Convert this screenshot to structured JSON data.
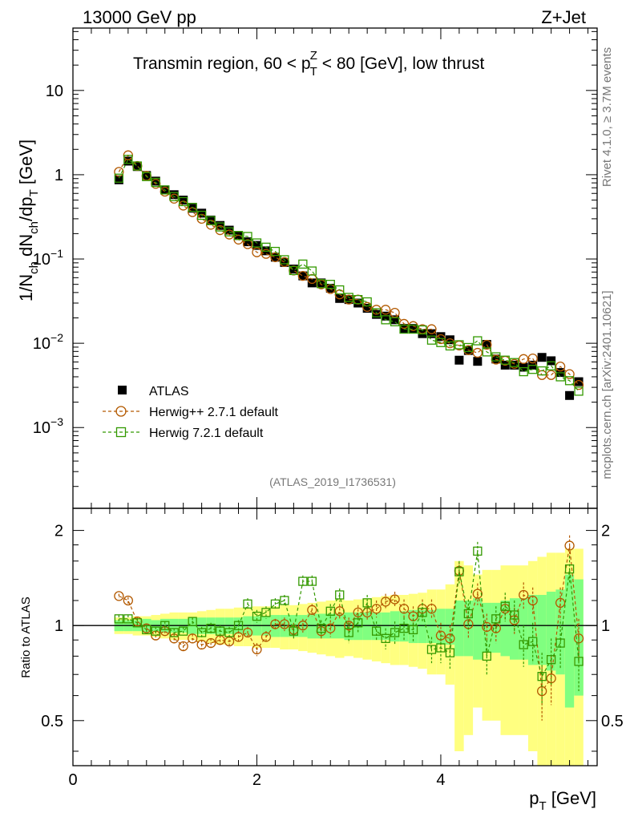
{
  "header": {
    "left": "13000 GeV pp",
    "right": "Z+Jet"
  },
  "side_labels": {
    "rivet": "Rivet 4.1.0, ≥ 3.7M events",
    "mcplots": "mcplots.cern.ch [arXiv:2401.10621]"
  },
  "chart_data": [
    {
      "type": "scatter",
      "title": "Transmin region, 60 < p_T^Z < 80 [GeV], low thrust",
      "title_parts": {
        "a": "Transmin region, 60 < p",
        "sub": "T",
        "sup": "Z",
        "b": " < 80 [GeV], low thrust"
      },
      "analysis_id": "(ATLAS_2019_I1736531)",
      "ylabel": "1/N_ch dN_ch/dp_T [GeV]",
      "ylabel_parts": {
        "a": "1/N",
        "s1": "ch",
        "b": " dN",
        "s2": "ch",
        "c": "/dp",
        "s3": "T",
        "d": " [GeV]"
      },
      "yscale": "log",
      "ylim": [
        0.00011,
        55
      ],
      "xlim": [
        0,
        5.7
      ],
      "ytick_values": [
        0.001,
        0.01,
        0.1,
        1,
        10
      ],
      "ytick_labels": [
        {
          "base": "10",
          "exp": "−3"
        },
        {
          "base": "10",
          "exp": "−2"
        },
        {
          "base": "10",
          "exp": "−1"
        },
        {
          "base": "1",
          "exp": ""
        },
        {
          "base": "10",
          "exp": ""
        }
      ],
      "legend": {
        "position": "lower-left",
        "entries": [
          {
            "label": "ATLAS",
            "marker": "filled-square",
            "color": "#000000"
          },
          {
            "label": "Herwig++ 2.7.1 default",
            "marker": "open-circle",
            "color": "#b35900"
          },
          {
            "label": "Herwig 7.2.1 default",
            "marker": "open-square",
            "color": "#339900"
          }
        ]
      },
      "x": [
        0.5,
        0.6,
        0.7,
        0.8,
        0.9,
        1.0,
        1.1,
        1.2,
        1.3,
        1.4,
        1.5,
        1.6,
        1.7,
        1.8,
        1.9,
        2.0,
        2.1,
        2.2,
        2.3,
        2.4,
        2.5,
        2.6,
        2.7,
        2.8,
        2.9,
        3.0,
        3.1,
        3.2,
        3.3,
        3.4,
        3.5,
        3.6,
        3.7,
        3.8,
        3.9,
        4.0,
        4.1,
        4.2,
        4.3,
        4.4,
        4.5,
        4.6,
        4.7,
        4.8,
        4.9,
        5.0,
        5.1,
        5.2,
        5.3,
        5.4,
        5.5
      ],
      "series": [
        {
          "name": "ATLAS",
          "color": "#000000",
          "values": [
            0.87,
            1.45,
            1.25,
            0.98,
            0.84,
            0.66,
            0.58,
            0.5,
            0.4,
            0.35,
            0.29,
            0.25,
            0.22,
            0.19,
            0.16,
            0.145,
            0.125,
            0.105,
            0.091,
            0.076,
            0.063,
            0.052,
            0.052,
            0.045,
            0.034,
            0.033,
            0.03,
            0.026,
            0.022,
            0.021,
            0.019,
            0.015,
            0.015,
            0.013,
            0.013,
            0.012,
            0.011,
            0.0063,
            0.0082,
            0.0061,
            0.0097,
            0.0065,
            0.0055,
            0.0055,
            0.0052,
            0.0055,
            0.0068,
            0.0062,
            0.0045,
            0.0024,
            0.0035
          ]
        },
        {
          "name": "Herwig++ 2.7.1 default",
          "color": "#b35900",
          "values": [
            1.08,
            1.7,
            1.27,
            0.97,
            0.78,
            0.63,
            0.52,
            0.43,
            0.36,
            0.3,
            0.255,
            0.22,
            0.195,
            0.17,
            0.15,
            0.12,
            0.115,
            0.105,
            0.092,
            0.073,
            0.063,
            0.058,
            0.05,
            0.044,
            0.038,
            0.033,
            0.033,
            0.027,
            0.025,
            0.025,
            0.023,
            0.017,
            0.016,
            0.0147,
            0.0147,
            0.0112,
            0.01,
            0.0094,
            0.0083,
            0.0077,
            0.0096,
            0.0064,
            0.0062,
            0.0057,
            0.0065,
            0.0066,
            0.0042,
            0.0042,
            0.0053,
            0.0043,
            0.0032
          ]
        },
        {
          "name": "Herwig 7.2.1 default",
          "color": "#339900",
          "values": [
            0.91,
            1.52,
            1.27,
            0.95,
            0.81,
            0.66,
            0.55,
            0.48,
            0.41,
            0.33,
            0.285,
            0.24,
            0.21,
            0.19,
            0.185,
            0.155,
            0.138,
            0.123,
            0.098,
            0.073,
            0.087,
            0.072,
            0.051,
            0.05,
            0.043,
            0.035,
            0.033,
            0.031,
            0.023,
            0.019,
            0.018,
            0.0147,
            0.0147,
            0.0144,
            0.0109,
            0.0102,
            0.0093,
            0.0096,
            0.0089,
            0.0107,
            0.0079,
            0.0069,
            0.0063,
            0.0059,
            0.0046,
            0.0049,
            0.0047,
            0.0054,
            0.004,
            0.0036,
            0.0027
          ]
        }
      ]
    },
    {
      "type": "scatter",
      "title": "",
      "xlabel": "p_T [GeV]",
      "xlabel_parts": {
        "a": "p",
        "sub": "T",
        "b": " [GeV]"
      },
      "ylabel": "Ratio to ATLAS",
      "yscale": "log",
      "ylim": [
        0.36,
        2.35
      ],
      "xlim": [
        0,
        5.7
      ],
      "xtick_values": [
        0,
        2,
        4
      ],
      "xtick_labels": [
        "0",
        "2",
        "4"
      ],
      "ytick_values": [
        0.5,
        1,
        2
      ],
      "ytick_labels": [
        "0.5",
        "1",
        "2"
      ],
      "reference_line": 1,
      "band_colors": {
        "outer": "#ffff80",
        "inner": "#80ff80"
      },
      "uncertainty_bands": {
        "stat": [
          0.04,
          0.04,
          0.04,
          0.05,
          0.04,
          0.05,
          0.05,
          0.05,
          0.06,
          0.06,
          0.06,
          0.06,
          0.06,
          0.06,
          0.07,
          0.07,
          0.07,
          0.08,
          0.08,
          0.08,
          0.08,
          0.09,
          0.09,
          0.09,
          0.09,
          0.1,
          0.1,
          0.1,
          0.1,
          0.1,
          0.11,
          0.11,
          0.12,
          0.12,
          0.12,
          0.13,
          0.13,
          0.2,
          0.2,
          0.22,
          0.18,
          0.18,
          0.2,
          0.22,
          0.22,
          0.25,
          0.25,
          0.28,
          0.3,
          0.45,
          0.4
        ],
        "total": [
          0.06,
          0.06,
          0.07,
          0.07,
          0.08,
          0.09,
          0.1,
          0.1,
          0.1,
          0.11,
          0.12,
          0.13,
          0.13,
          0.14,
          0.14,
          0.15,
          0.15,
          0.15,
          0.16,
          0.16,
          0.17,
          0.18,
          0.19,
          0.2,
          0.21,
          0.2,
          0.21,
          0.22,
          0.23,
          0.24,
          0.25,
          0.25,
          0.26,
          0.27,
          0.3,
          0.3,
          0.35,
          0.6,
          0.55,
          0.45,
          0.5,
          0.5,
          0.55,
          0.55,
          0.55,
          0.6,
          0.65,
          0.7,
          0.7,
          0.75,
          0.75
        ]
      },
      "series": [
        {
          "name": "Herwig++ 2.7.1 default",
          "color": "#b35900",
          "values": [
            1.24,
            1.2,
            1.03,
            0.98,
            0.93,
            0.96,
            0.91,
            0.86,
            0.91,
            0.87,
            0.88,
            0.9,
            0.89,
            0.92,
            0.95,
            0.84,
            0.92,
            1.01,
            1.01,
            0.97,
            1.0,
            1.12,
            0.96,
            0.98,
            1.11,
            1.0,
            1.1,
            1.1,
            1.13,
            1.19,
            1.21,
            1.13,
            1.07,
            1.13,
            1.13,
            0.93,
            0.91,
            1.49,
            1.01,
            1.26,
            0.99,
            0.98,
            1.13,
            1.04,
            1.25,
            1.2,
            0.62,
            0.68,
            1.18,
            1.79,
            0.91
          ],
          "errors": [
            0.02,
            0.03,
            0.03,
            0.03,
            0.03,
            0.03,
            0.03,
            0.03,
            0.03,
            0.03,
            0.03,
            0.03,
            0.04,
            0.04,
            0.04,
            0.04,
            0.04,
            0.04,
            0.05,
            0.05,
            0.05,
            0.05,
            0.05,
            0.06,
            0.06,
            0.06,
            0.06,
            0.06,
            0.07,
            0.07,
            0.07,
            0.08,
            0.08,
            0.08,
            0.08,
            0.09,
            0.09,
            0.1,
            0.1,
            0.1,
            0.1,
            0.1,
            0.1,
            0.1,
            0.12,
            0.12,
            0.12,
            0.12,
            0.14,
            0.14,
            0.14
          ]
        },
        {
          "name": "Herwig 7.2.1 default",
          "color": "#339900",
          "values": [
            1.05,
            1.05,
            1.02,
            0.97,
            0.96,
            1.0,
            0.95,
            0.96,
            1.03,
            0.95,
            0.98,
            0.96,
            0.95,
            1.0,
            1.17,
            1.07,
            1.1,
            1.17,
            1.2,
            0.96,
            1.38,
            1.38,
            0.98,
            1.11,
            1.25,
            0.95,
            1.02,
            1.18,
            0.96,
            0.91,
            0.95,
            0.98,
            0.97,
            1.1,
            0.84,
            0.85,
            0.82,
            1.48,
            1.09,
            1.72,
            0.8,
            1.05,
            1.15,
            1.08,
            0.87,
            0.89,
            0.69,
            0.78,
            0.88,
            1.51,
            0.77
          ],
          "errors": [
            0.03,
            0.03,
            0.03,
            0.03,
            0.03,
            0.03,
            0.03,
            0.03,
            0.03,
            0.04,
            0.04,
            0.04,
            0.04,
            0.04,
            0.05,
            0.05,
            0.05,
            0.05,
            0.05,
            0.05,
            0.06,
            0.06,
            0.06,
            0.06,
            0.06,
            0.07,
            0.07,
            0.07,
            0.07,
            0.07,
            0.08,
            0.08,
            0.08,
            0.08,
            0.08,
            0.09,
            0.09,
            0.12,
            0.12,
            0.12,
            0.1,
            0.1,
            0.12,
            0.12,
            0.13,
            0.13,
            0.13,
            0.13,
            0.15,
            0.15,
            0.15
          ]
        }
      ]
    }
  ]
}
